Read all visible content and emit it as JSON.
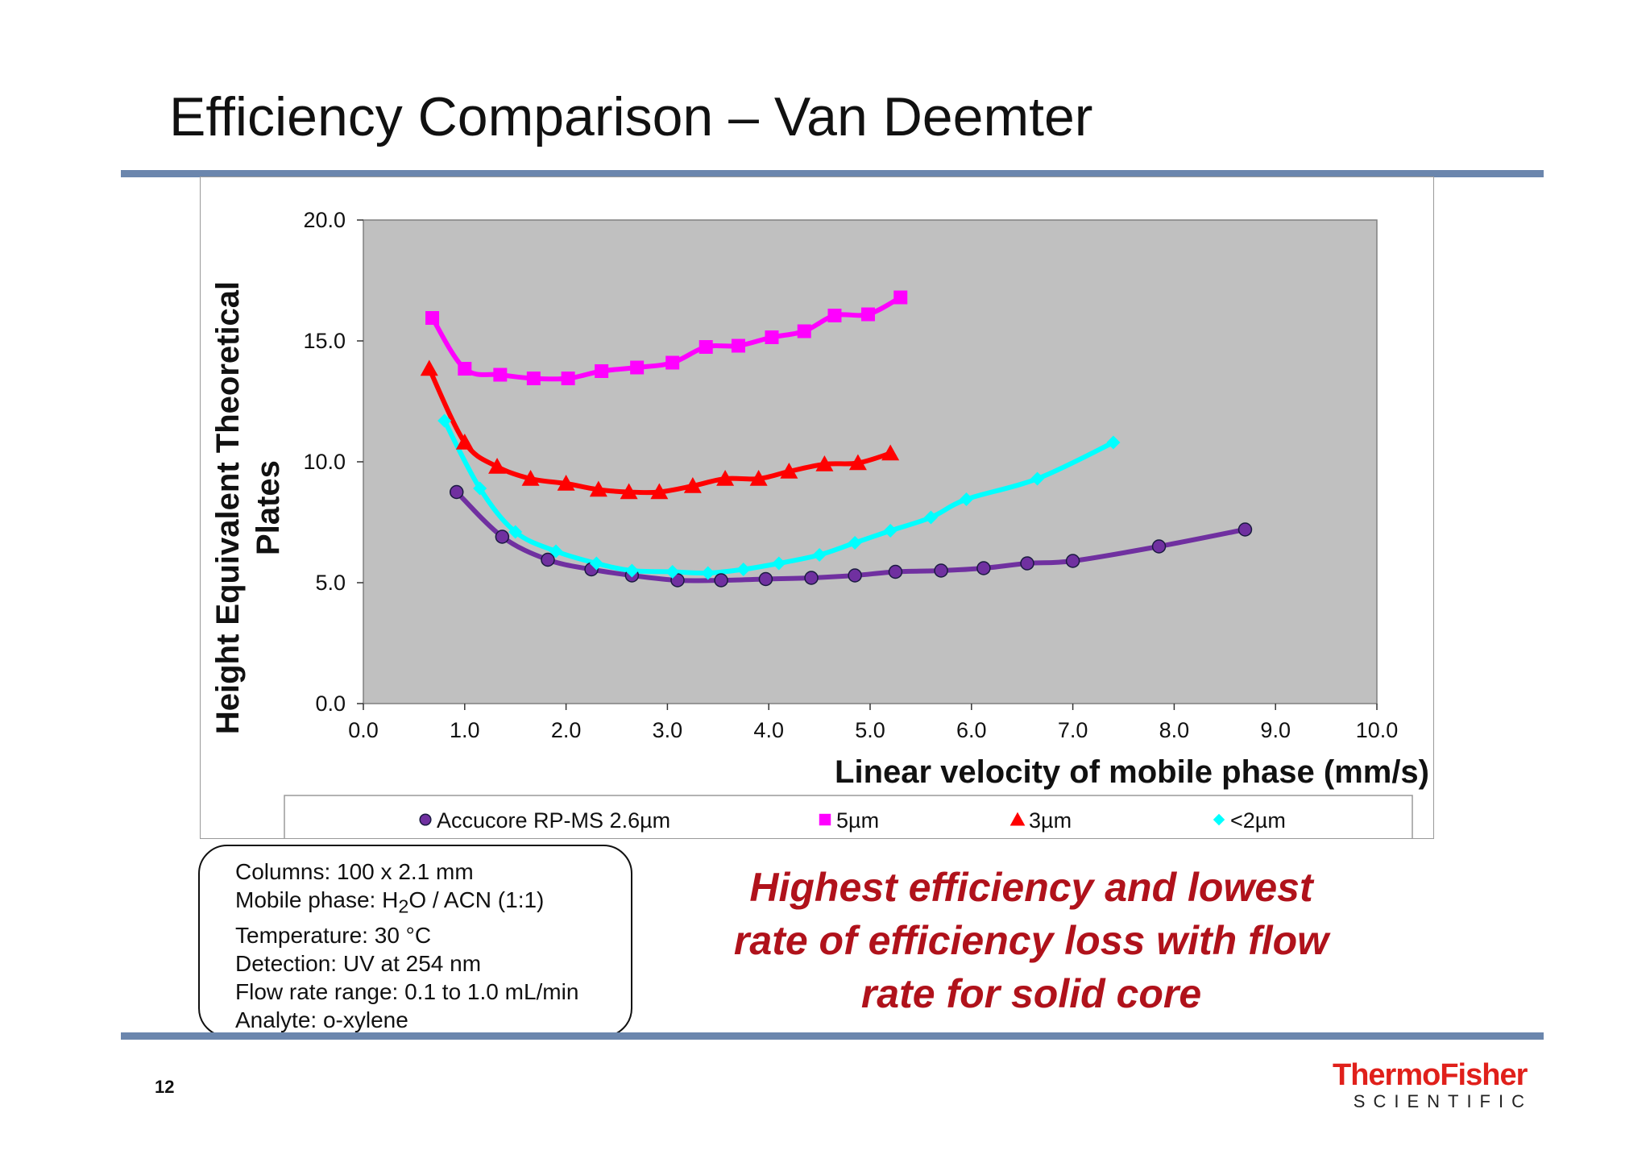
{
  "slide": {
    "title": "Efficiency Comparison – Van Deemter",
    "page_number": "12"
  },
  "conditions": {
    "columns": "Columns: 100 x 2.1 mm",
    "mobile_phase_prefix": "Mobile phase: H",
    "mobile_phase_sub": "2",
    "mobile_phase_suffix": "O / ACN (1:1)",
    "temperature": "Temperature: 30 °C",
    "detection": "Detection: UV at 254 nm",
    "flow_rate": "Flow rate range: 0.1 to 1.0 mL/min",
    "analyte": "Analyte: o-xylene"
  },
  "callout": {
    "line1": "Highest efficiency and lowest",
    "line2": "rate of efficiency loss with flow",
    "line3": "rate for solid core"
  },
  "logo": {
    "top": "ThermoFisher",
    "bottom": "SCIENTIFIC"
  },
  "colors": {
    "plot_background": "#c0c0c0",
    "accucore": "#7030a0",
    "five_um": "#ff00ff",
    "three_um": "#ff0000",
    "two_um": "#00ffff",
    "callout": "#b0121b",
    "rule": "#6b86ad",
    "logo_red": "#e0201b"
  },
  "chart_data": {
    "type": "scatter",
    "title": "",
    "xlabel": "Linear velocity of mobile phase (mm/s)",
    "ylabel_lines": [
      "Height Equivalent Theoretical",
      "Plates"
    ],
    "xlim": [
      0,
      10
    ],
    "ylim": [
      0,
      20
    ],
    "x_ticks": [
      "0.0",
      "1.0",
      "2.0",
      "3.0",
      "4.0",
      "5.0",
      "6.0",
      "7.0",
      "8.0",
      "9.0",
      "10.0"
    ],
    "y_ticks": [
      "0.0",
      "5.0",
      "10.0",
      "15.0",
      "20.0"
    ],
    "grid": false,
    "legend_position": "bottom",
    "series": [
      {
        "name": "Accucore RP-MS 2.6µm",
        "marker": "circle",
        "color": "#7030a0",
        "points": [
          [
            0.92,
            8.75
          ],
          [
            1.37,
            6.9
          ],
          [
            1.82,
            5.95
          ],
          [
            2.25,
            5.55
          ],
          [
            2.65,
            5.3
          ],
          [
            3.1,
            5.1
          ],
          [
            3.53,
            5.1
          ],
          [
            3.97,
            5.15
          ],
          [
            4.42,
            5.2
          ],
          [
            4.85,
            5.3
          ],
          [
            5.25,
            5.45
          ],
          [
            5.7,
            5.5
          ],
          [
            6.12,
            5.6
          ],
          [
            6.55,
            5.8
          ],
          [
            7.0,
            5.9
          ],
          [
            7.85,
            6.5
          ],
          [
            8.7,
            7.2
          ]
        ]
      },
      {
        "name": "5µm",
        "marker": "square",
        "color": "#ff00ff",
        "points": [
          [
            0.68,
            15.95
          ],
          [
            1.0,
            13.85
          ],
          [
            1.35,
            13.6
          ],
          [
            1.68,
            13.45
          ],
          [
            2.02,
            13.45
          ],
          [
            2.35,
            13.75
          ],
          [
            2.7,
            13.9
          ],
          [
            3.05,
            14.1
          ],
          [
            3.38,
            14.75
          ],
          [
            3.7,
            14.8
          ],
          [
            4.03,
            15.15
          ],
          [
            4.35,
            15.4
          ],
          [
            4.65,
            16.05
          ],
          [
            4.98,
            16.1
          ],
          [
            5.3,
            16.8
          ]
        ]
      },
      {
        "name": "3µm",
        "marker": "triangle",
        "color": "#ff0000",
        "points": [
          [
            0.65,
            13.85
          ],
          [
            1.0,
            10.8
          ],
          [
            1.32,
            9.8
          ],
          [
            1.65,
            9.3
          ],
          [
            2.0,
            9.1
          ],
          [
            2.32,
            8.85
          ],
          [
            2.62,
            8.75
          ],
          [
            2.92,
            8.75
          ],
          [
            3.25,
            9.0
          ],
          [
            3.57,
            9.3
          ],
          [
            3.9,
            9.3
          ],
          [
            4.2,
            9.6
          ],
          [
            4.55,
            9.9
          ],
          [
            4.88,
            9.95
          ],
          [
            5.2,
            10.35
          ]
        ]
      },
      {
        "name": "<2µm",
        "marker": "diamond",
        "color": "#00ffff",
        "points": [
          [
            0.8,
            11.7
          ],
          [
            1.15,
            8.9
          ],
          [
            1.5,
            7.1
          ],
          [
            1.9,
            6.3
          ],
          [
            2.3,
            5.8
          ],
          [
            2.65,
            5.5
          ],
          [
            3.05,
            5.45
          ],
          [
            3.4,
            5.4
          ],
          [
            3.75,
            5.55
          ],
          [
            4.1,
            5.8
          ],
          [
            4.5,
            6.15
          ],
          [
            4.85,
            6.65
          ],
          [
            5.2,
            7.15
          ],
          [
            5.6,
            7.7
          ],
          [
            5.95,
            8.45
          ],
          [
            6.65,
            9.3
          ],
          [
            7.4,
            10.8
          ]
        ]
      }
    ]
  }
}
